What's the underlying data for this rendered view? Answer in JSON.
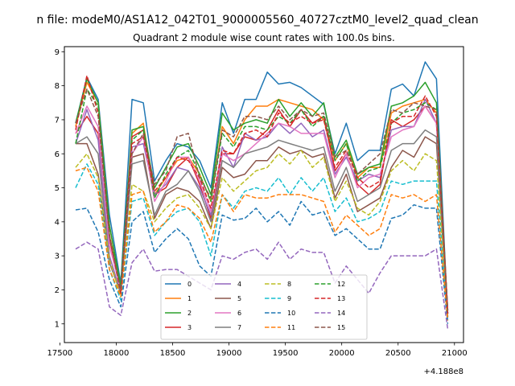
{
  "chart_data": {
    "type": "line",
    "suptitle": "n file: modeM0/AS1A12_042T01_9000005560_40727cztM0_level2_quad_clean",
    "title": "Quadrant 2 module wise count rates with 100.0s bins.",
    "xlabel": "",
    "ylabel": "",
    "x_offset_label": "+4.188e8",
    "xlim": [
      17540,
      21080
    ],
    "ylim": [
      0.45,
      9.15
    ],
    "xticks": [
      17500,
      18000,
      18500,
      19000,
      19500,
      20000,
      20500,
      21000
    ],
    "yticks": [
      1,
      2,
      3,
      4,
      5,
      6,
      7,
      8,
      9
    ],
    "grid": false,
    "legend_position": "lower center",
    "x": [
      17640,
      17740,
      17840,
      17940,
      18040,
      18140,
      18240,
      18340,
      18440,
      18540,
      18640,
      18740,
      18840,
      18940,
      19040,
      19140,
      19240,
      19340,
      19440,
      19540,
      19640,
      19740,
      19840,
      19940,
      20040,
      20140,
      20240,
      20340,
      20440,
      20540,
      20640,
      20740,
      20840,
      20940
    ],
    "series": [
      {
        "name": "0",
        "color": "#1f77b4",
        "dash": "solid",
        "values": [
          6.9,
          8.25,
          7.6,
          4.2,
          2.2,
          7.6,
          7.5,
          5.2,
          5.8,
          6.3,
          6.2,
          5.8,
          5.0,
          7.5,
          6.6,
          7.6,
          7.6,
          8.4,
          8.05,
          8.1,
          7.95,
          7.7,
          7.45,
          6.0,
          6.9,
          5.8,
          6.1,
          6.1,
          7.9,
          8.05,
          7.7,
          8.7,
          8.2,
          1.2
        ]
      },
      {
        "name": "1",
        "color": "#ff7f0e",
        "dash": "solid",
        "values": [
          6.8,
          8.1,
          7.5,
          3.9,
          2.0,
          6.6,
          6.9,
          4.8,
          5.3,
          5.8,
          5.9,
          5.4,
          4.6,
          6.8,
          6.3,
          7.0,
          7.4,
          7.4,
          7.6,
          7.5,
          7.4,
          7.3,
          7.0,
          5.8,
          6.3,
          5.3,
          5.6,
          5.6,
          7.2,
          7.4,
          7.5,
          7.6,
          7.2,
          1.4
        ]
      },
      {
        "name": "2",
        "color": "#2ca02c",
        "dash": "solid",
        "values": [
          6.9,
          8.2,
          7.5,
          3.9,
          2.1,
          6.7,
          6.8,
          5.0,
          5.6,
          6.2,
          6.3,
          5.6,
          4.8,
          7.2,
          6.7,
          6.9,
          7.0,
          6.9,
          7.6,
          7.1,
          7.5,
          7.1,
          7.5,
          5.9,
          6.4,
          5.4,
          5.6,
          5.7,
          7.4,
          7.5,
          7.7,
          8.1,
          7.5,
          1.3
        ]
      },
      {
        "name": "3",
        "color": "#d62728",
        "dash": "solid",
        "values": [
          6.6,
          7.1,
          6.6,
          3.5,
          2.0,
          6.5,
          6.7,
          4.8,
          5.0,
          5.6,
          5.9,
          5.1,
          4.1,
          6.0,
          6.0,
          6.5,
          6.4,
          6.7,
          7.3,
          6.8,
          7.3,
          6.9,
          7.1,
          5.5,
          6.0,
          5.1,
          4.8,
          5.1,
          7.0,
          6.8,
          7.0,
          7.4,
          6.9,
          1.4
        ]
      },
      {
        "name": "4",
        "color": "#9467bd",
        "dash": "solid",
        "values": [
          6.3,
          7.3,
          6.4,
          3.0,
          1.9,
          6.2,
          6.3,
          4.8,
          5.1,
          5.6,
          5.5,
          5.0,
          4.2,
          6.2,
          5.6,
          6.6,
          6.4,
          6.5,
          6.9,
          6.6,
          6.9,
          6.5,
          6.7,
          5.4,
          5.9,
          5.2,
          5.4,
          5.3,
          6.7,
          6.8,
          6.8,
          7.6,
          6.9,
          1.3
        ]
      },
      {
        "name": "5",
        "color": "#8c564b",
        "dash": "solid",
        "values": [
          6.3,
          6.3,
          5.4,
          2.8,
          1.9,
          5.9,
          6.0,
          4.1,
          4.8,
          5.0,
          4.9,
          4.6,
          3.8,
          5.6,
          5.3,
          5.4,
          5.8,
          5.8,
          6.2,
          6.0,
          6.1,
          5.9,
          6.0,
          4.7,
          5.4,
          4.3,
          4.5,
          4.7,
          5.6,
          6.1,
          5.9,
          6.5,
          6.3,
          1.2
        ]
      },
      {
        "name": "6",
        "color": "#e377c2",
        "dash": "solid",
        "values": [
          6.6,
          7.4,
          6.8,
          3.3,
          2.0,
          6.0,
          6.5,
          4.6,
          5.2,
          5.9,
          5.9,
          5.2,
          4.3,
          6.0,
          5.8,
          6.0,
          6.3,
          6.6,
          6.9,
          6.8,
          6.6,
          6.6,
          6.6,
          5.3,
          6.0,
          5.0,
          5.3,
          5.4,
          6.5,
          6.7,
          6.8,
          7.4,
          6.9,
          1.3
        ]
      },
      {
        "name": "7",
        "color": "#7f7f7f",
        "dash": "solid",
        "values": [
          6.3,
          6.5,
          6.0,
          2.8,
          1.9,
          5.7,
          5.8,
          4.2,
          4.9,
          5.1,
          5.5,
          4.9,
          4.0,
          5.8,
          5.6,
          6.0,
          6.1,
          6.2,
          6.4,
          6.3,
          6.2,
          6.1,
          6.2,
          4.9,
          5.6,
          4.6,
          4.8,
          5.0,
          6.1,
          6.3,
          6.3,
          6.7,
          6.5,
          1.3
        ]
      },
      {
        "name": "8",
        "color": "#bcbd22",
        "dash": "dash",
        "values": [
          5.6,
          6.0,
          5.3,
          2.9,
          1.8,
          5.1,
          4.9,
          4.0,
          4.4,
          4.7,
          4.8,
          4.4,
          3.8,
          5.3,
          4.9,
          5.2,
          5.5,
          5.6,
          6.0,
          5.7,
          6.1,
          5.6,
          5.9,
          4.6,
          5.2,
          4.4,
          4.2,
          4.6,
          5.5,
          5.8,
          5.5,
          6.0,
          5.8,
          1.2
        ]
      },
      {
        "name": "9",
        "color": "#17becf",
        "dash": "dash",
        "values": [
          5.0,
          5.7,
          5.1,
          2.6,
          1.7,
          4.6,
          4.7,
          3.6,
          4.0,
          4.3,
          4.4,
          4.0,
          3.0,
          4.8,
          4.4,
          4.9,
          5.0,
          4.9,
          5.3,
          4.8,
          5.3,
          4.9,
          5.3,
          4.3,
          4.7,
          4.0,
          4.1,
          4.3,
          5.2,
          5.1,
          5.2,
          5.2,
          5.2,
          1.1
        ]
      },
      {
        "name": "10",
        "color": "#1f77b4",
        "dash": "dash",
        "values": [
          4.35,
          4.4,
          3.7,
          2.3,
          1.5,
          4.0,
          4.3,
          3.1,
          3.5,
          3.8,
          3.5,
          2.7,
          2.4,
          4.2,
          4.05,
          4.1,
          4.4,
          4.0,
          4.3,
          3.9,
          4.6,
          4.2,
          4.3,
          3.6,
          3.8,
          3.5,
          3.2,
          3.2,
          4.1,
          4.2,
          4.5,
          4.4,
          4.4,
          1.0
        ]
      },
      {
        "name": "11",
        "color": "#ff7f0e",
        "dash": "dash",
        "values": [
          5.5,
          5.6,
          4.9,
          2.6,
          1.8,
          4.8,
          4.9,
          3.7,
          4.0,
          4.5,
          4.4,
          4.1,
          3.4,
          4.8,
          4.3,
          4.8,
          4.7,
          4.7,
          4.8,
          4.8,
          4.8,
          4.7,
          4.6,
          3.7,
          4.2,
          3.9,
          3.6,
          3.8,
          4.8,
          4.7,
          4.8,
          4.6,
          4.8,
          1.1
        ]
      },
      {
        "name": "12",
        "color": "#2ca02c",
        "dash": "dash",
        "values": [
          6.3,
          7.9,
          7.4,
          3.6,
          2.1,
          6.4,
          6.7,
          4.7,
          5.4,
          5.9,
          6.1,
          5.4,
          4.6,
          6.6,
          6.2,
          6.8,
          6.8,
          6.7,
          7.1,
          6.9,
          7.3,
          6.8,
          7.1,
          5.8,
          6.3,
          5.2,
          5.5,
          5.6,
          6.9,
          7.2,
          7.3,
          7.5,
          7.3,
          1.3
        ]
      },
      {
        "name": "13",
        "color": "#d62728",
        "dash": "dash",
        "values": [
          6.7,
          8.3,
          7.2,
          3.6,
          1.9,
          6.3,
          6.5,
          4.9,
          5.3,
          5.9,
          5.8,
          5.3,
          4.4,
          6.1,
          6.0,
          6.6,
          6.7,
          6.5,
          7.2,
          6.9,
          7.1,
          6.9,
          7.0,
          5.6,
          6.1,
          5.3,
          5.0,
          5.2,
          6.9,
          7.1,
          7.1,
          7.7,
          7.1,
          1.3
        ]
      },
      {
        "name": "14",
        "color": "#9467bd",
        "dash": "dash",
        "values": [
          3.2,
          3.4,
          3.2,
          1.5,
          1.25,
          2.8,
          3.2,
          2.55,
          2.6,
          2.6,
          2.4,
          2.2,
          2.0,
          3.0,
          2.9,
          3.1,
          3.2,
          2.9,
          3.4,
          2.9,
          3.2,
          3.1,
          3.1,
          2.2,
          2.7,
          2.3,
          1.9,
          2.5,
          3.0,
          3.0,
          3.0,
          3.0,
          3.2,
          0.85
        ]
      },
      {
        "name": "15",
        "color": "#8c564b",
        "dash": "dash",
        "values": [
          6.9,
          7.9,
          7.1,
          3.6,
          2.0,
          6.0,
          6.6,
          5.1,
          5.5,
          6.5,
          6.6,
          5.3,
          4.7,
          6.7,
          6.5,
          7.1,
          7.1,
          7.0,
          7.4,
          7.0,
          7.3,
          7.1,
          7.2,
          5.9,
          6.1,
          5.4,
          5.7,
          6.0,
          7.3,
          7.2,
          7.5,
          7.4,
          7.3,
          1.4
        ]
      }
    ]
  }
}
